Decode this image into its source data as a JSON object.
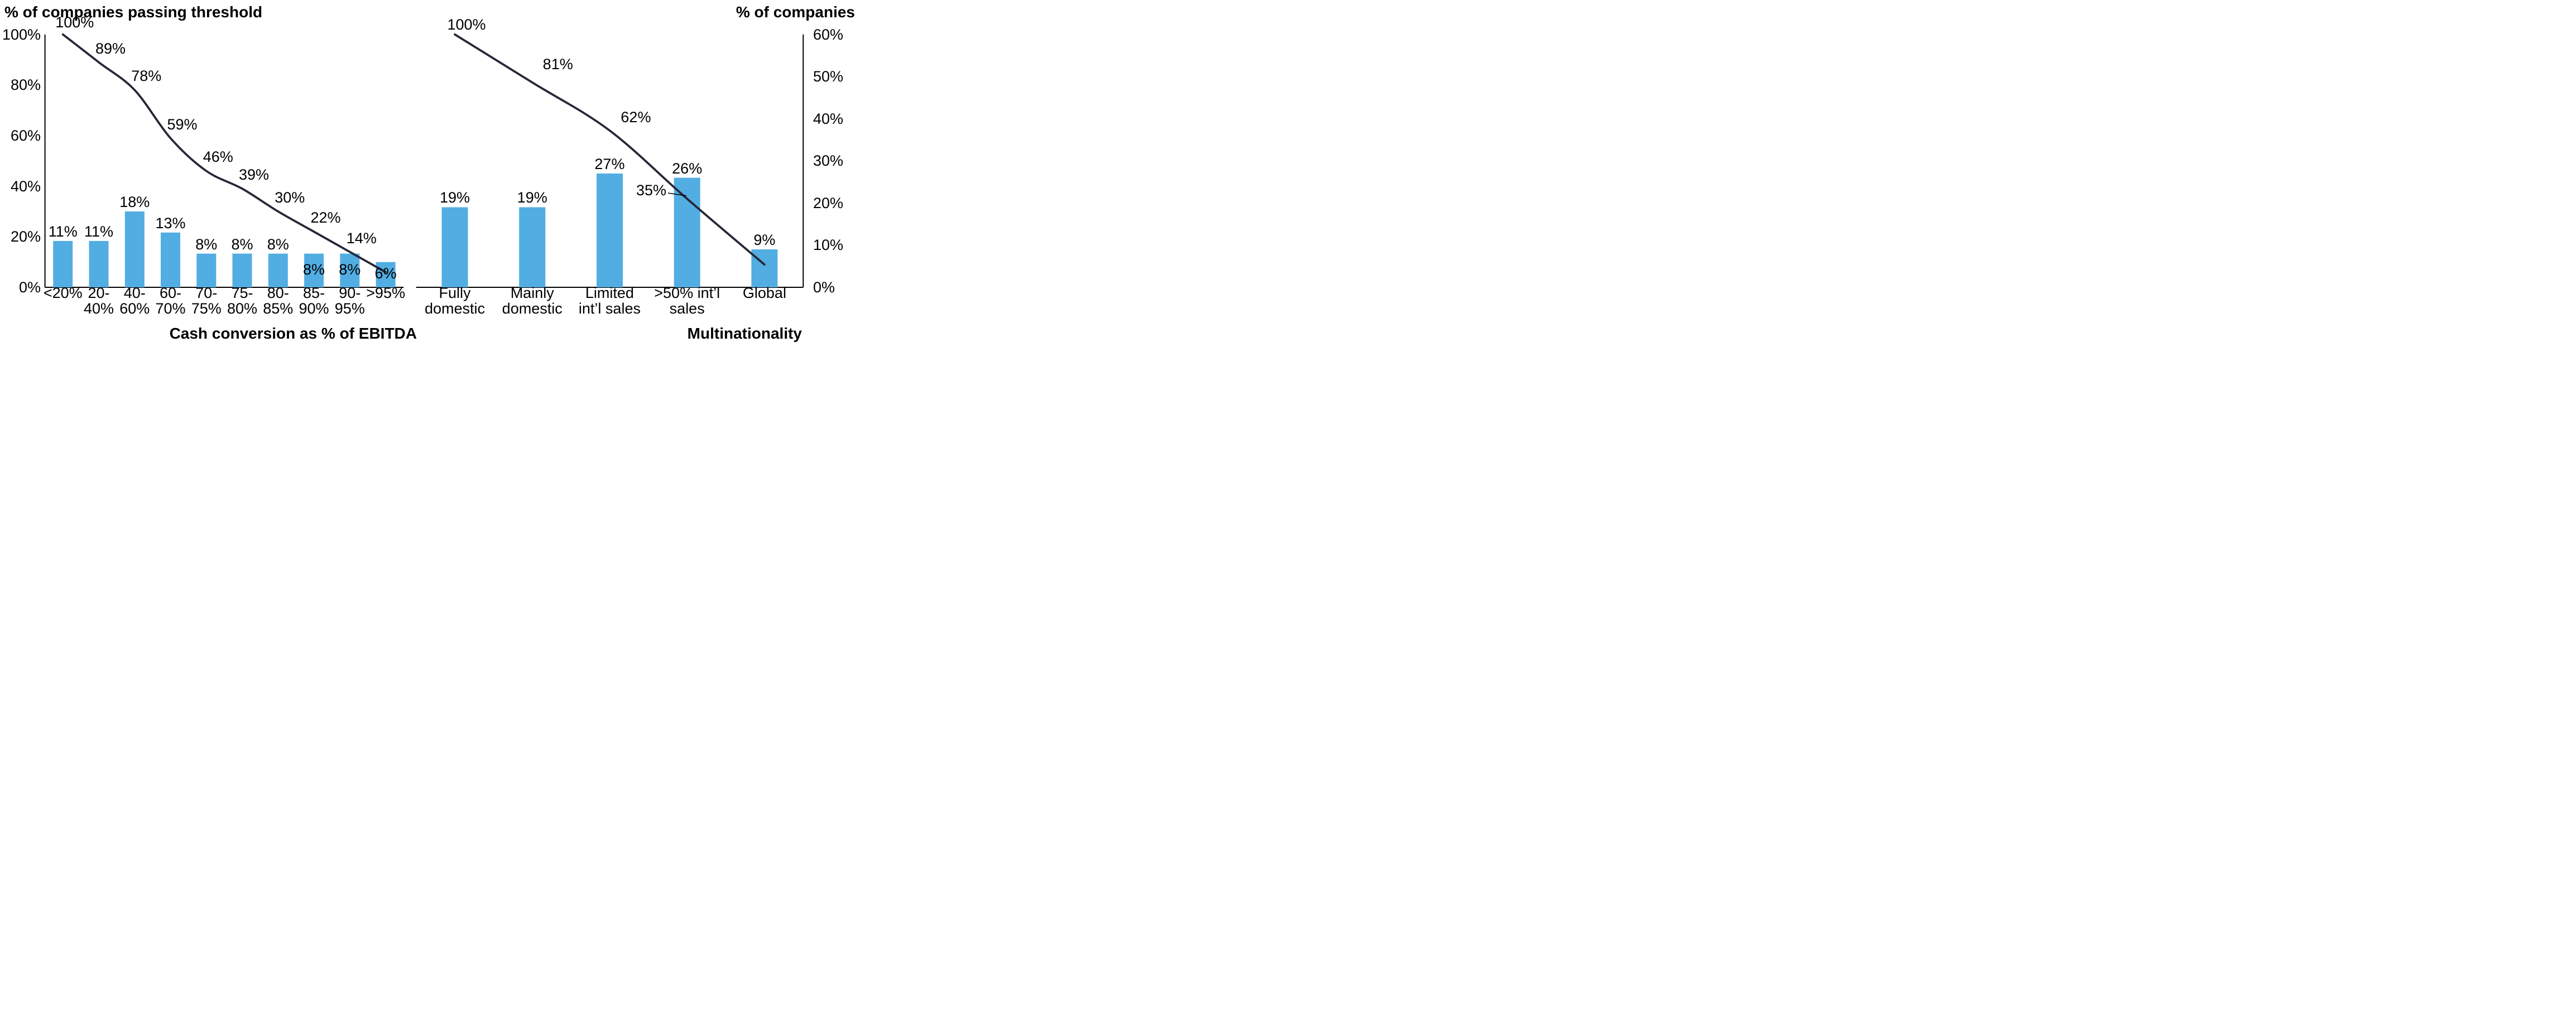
{
  "colors": {
    "background": "#ffffff",
    "bar": "#52ADE2",
    "line": "#262736",
    "axis": "#000000",
    "text": "#000000",
    "leader": "#000000"
  },
  "chart_data": [
    {
      "id": "cash-conversion",
      "type": "bar+line",
      "y_axis_title": "% of companies passing threshold",
      "x_axis_title": "Cash conversion as % of EBITDA",
      "y_axis_side": "left",
      "y_axis": {
        "range": [
          0,
          100
        ],
        "tick_values": [
          0,
          20,
          40,
          60,
          80,
          100
        ],
        "tick_labels": [
          "0%",
          "20%",
          "40%",
          "60%",
          "80%",
          "100%"
        ]
      },
      "bar_axis_range": [
        0,
        60
      ],
      "line_axis_range": [
        0,
        100
      ],
      "grid": "off",
      "legend": "none",
      "categories": [
        "<20%",
        "20-40%",
        "40-60%",
        "60-70%",
        "70-75%",
        "75-80%",
        "80-85%",
        "85-90%",
        "90-95%",
        ">95%"
      ],
      "category_display": [
        [
          "<20%"
        ],
        [
          "20-",
          "40%"
        ],
        [
          "40-",
          "60%"
        ],
        [
          "60-",
          "70%"
        ],
        [
          "70-",
          "75%"
        ],
        [
          "75-",
          "80%"
        ],
        [
          "80-",
          "85%"
        ],
        [
          "85-",
          "90%"
        ],
        [
          "90-",
          "95%"
        ],
        [
          ">95%"
        ]
      ],
      "bars": {
        "name": "% of companies per bucket",
        "values": [
          11,
          11,
          18,
          13,
          8,
          8,
          8,
          8,
          8,
          6
        ],
        "labels": [
          "11%",
          "11%",
          "18%",
          "13%",
          "8%",
          "8%",
          "8%",
          "8%",
          "8%",
          "6%"
        ],
        "label_placement": [
          "above",
          "above",
          "above",
          "above",
          "above",
          "above",
          "above",
          "inside",
          "inside",
          "inside"
        ]
      },
      "line": {
        "name": "% of companies passing threshold",
        "values": [
          100,
          89,
          78,
          59,
          46,
          39,
          30,
          22,
          14,
          6
        ],
        "labels": [
          "100%",
          "89%",
          "78%",
          "59%",
          "46%",
          "39%",
          "30%",
          "22%",
          "14%",
          null
        ]
      }
    },
    {
      "id": "multinationality",
      "type": "bar+line",
      "y_axis_title": "% of companies",
      "x_axis_title": "Multinationality",
      "y_axis_side": "right",
      "y_axis": {
        "range": [
          0,
          60
        ],
        "tick_values": [
          0,
          10,
          20,
          30,
          40,
          50,
          60
        ],
        "tick_labels": [
          "0%",
          "10%",
          "20%",
          "30%",
          "40%",
          "50%",
          "60%"
        ]
      },
      "bar_axis_range": [
        0,
        60
      ],
      "line_axis_range": [
        0,
        100
      ],
      "grid": "off",
      "legend": "none",
      "categories": [
        "Fully domestic",
        "Mainly domestic",
        "Limited int’l sales",
        ">50% int’l sales",
        "Global"
      ],
      "category_display": [
        [
          "Fully",
          "domestic"
        ],
        [
          "Mainly",
          "domestic"
        ],
        [
          "Limited",
          "int’l sales"
        ],
        [
          ">50% int’l",
          "sales"
        ],
        [
          "Global"
        ]
      ],
      "bars": {
        "name": "% of companies per bucket",
        "values": [
          19,
          19,
          27,
          26,
          9
        ],
        "labels": [
          "19%",
          "19%",
          "27%",
          "26%",
          "9%"
        ],
        "label_placement": [
          "above",
          "above",
          "above",
          "above",
          "above"
        ]
      },
      "line": {
        "name": "cumulative % of companies",
        "values": [
          100,
          81,
          62,
          35,
          9
        ],
        "labels": [
          "100%",
          "81%",
          "62%",
          "35%",
          null
        ],
        "callout": {
          "label": "35%",
          "has_leader_line": true
        }
      }
    }
  ]
}
